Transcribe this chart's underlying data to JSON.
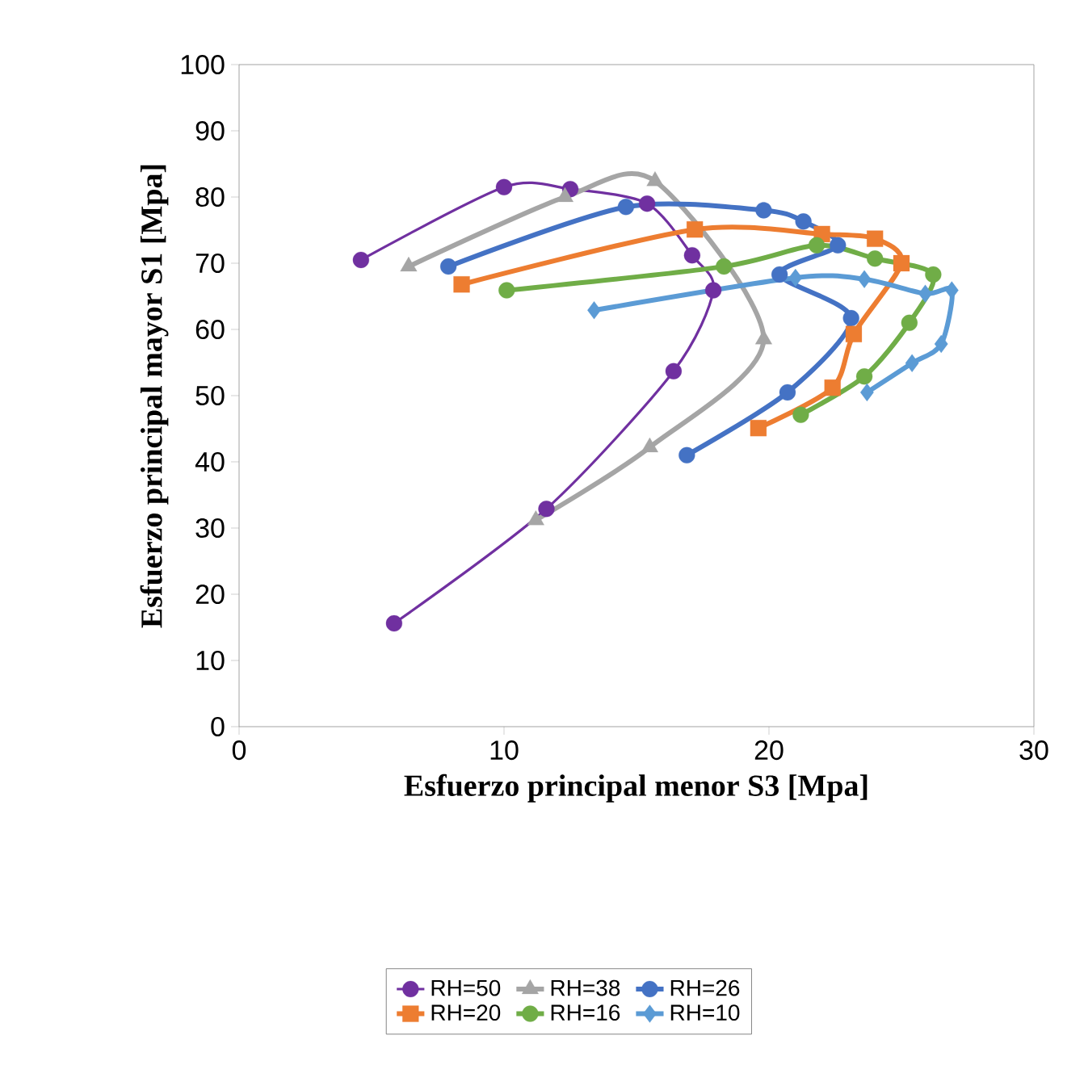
{
  "chart_data": {
    "type": "line",
    "xlabel": "Esfuerzo principal menor S3 [Mpa]",
    "ylabel": "Esfuerzo principal mayor S1 [Mpa]",
    "xlim": [
      0,
      30
    ],
    "xticks": [
      0,
      10,
      20,
      30
    ],
    "ylim": [
      0,
      100
    ],
    "yticks": [
      0,
      10,
      20,
      30,
      40,
      50,
      60,
      70,
      80,
      90,
      100
    ],
    "grid": false,
    "legend": "bottom",
    "series": [
      {
        "name": "RH=50",
        "color": "#7030a0",
        "marker": "circle",
        "x": [
          5.85,
          11.6,
          16.4,
          17.9,
          17.1,
          15.4,
          12.5,
          10.0,
          4.6
        ],
        "values": [
          15.6,
          32.9,
          53.7,
          65.9,
          71.2,
          79,
          81.2,
          81.5,
          70.5
        ]
      },
      {
        "name": "RH=38",
        "color": "#a5a5a5",
        "marker": "triangle",
        "x": [
          11.2,
          15.5,
          19.8,
          15.7,
          12.3,
          6.4
        ],
        "values": [
          31.2,
          42.2,
          58.5,
          82.4,
          80,
          69.5
        ]
      },
      {
        "name": "RH=26",
        "color": "#4472c4",
        "marker": "circle",
        "x": [
          16.9,
          20.7,
          23.1,
          20.4,
          22.6,
          21.3,
          19.8,
          14.6,
          7.9
        ],
        "values": [
          41,
          50.5,
          61.7,
          68.3,
          72.7,
          76.3,
          78,
          78.5,
          69.5
        ]
      },
      {
        "name": "RH=20",
        "color": "#ed7d31",
        "marker": "square",
        "x": [
          19.6,
          22.4,
          23.2,
          25.0,
          24.0,
          22.0,
          17.2,
          8.4
        ],
        "values": [
          45.1,
          51.2,
          59.3,
          70,
          73.7,
          74.4,
          75.1,
          66.8
        ]
      },
      {
        "name": "RH=16",
        "color": "#70ad47",
        "marker": "circle",
        "x": [
          21.2,
          23.6,
          25.3,
          26.2,
          24.0,
          21.8,
          18.3,
          10.1
        ],
        "values": [
          47.1,
          52.9,
          61,
          68.3,
          70.7,
          72.7,
          69.5,
          65.9
        ]
      },
      {
        "name": "RH=10",
        "color": "#5b9bd5",
        "marker": "diamond",
        "x": [
          23.7,
          25.4,
          26.5,
          26.9,
          25.9,
          23.6,
          21.0,
          13.4
        ],
        "values": [
          50.5,
          54.9,
          57.8,
          65.9,
          65.4,
          67.6,
          67.8,
          62.9
        ]
      }
    ]
  }
}
